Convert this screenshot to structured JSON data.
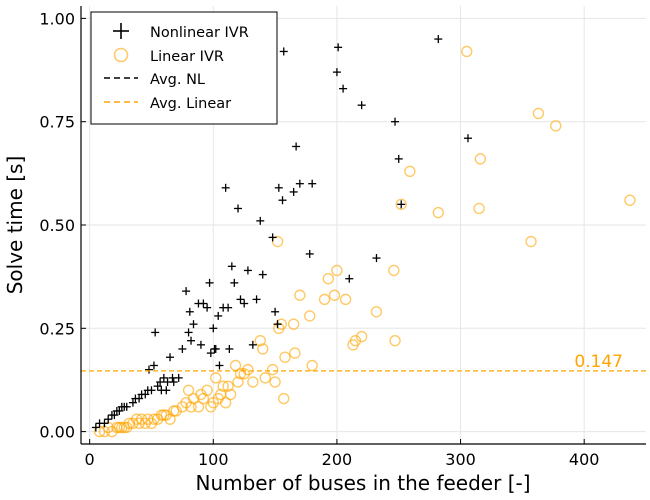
{
  "chart_data": {
    "type": "scatter",
    "xlabel": "Number of buses in the feeder [-]",
    "ylabel": "Solve time [s]",
    "xlim": [
      -7,
      450
    ],
    "ylim": [
      -0.03,
      1.03
    ],
    "xticks": [
      0,
      100,
      200,
      300,
      400
    ],
    "yticks": [
      0.0,
      0.25,
      0.5,
      0.75,
      1.0
    ],
    "xtick_labels": [
      "0",
      "100",
      "200",
      "300",
      "400"
    ],
    "ytick_labels": [
      "0.00",
      "0.25",
      "0.50",
      "0.75",
      "1.00"
    ],
    "grid": true,
    "legend_position": "top-left",
    "colors": {
      "nonlinear": "#000000",
      "linear": "#FFA500"
    },
    "series": [
      {
        "name": "Nonlinear IVR",
        "marker": "plus",
        "points": [
          [
            5,
            0.01
          ],
          [
            8,
            0.02
          ],
          [
            12,
            0.02
          ],
          [
            15,
            0.03
          ],
          [
            18,
            0.04
          ],
          [
            20,
            0.04
          ],
          [
            22,
            0.05
          ],
          [
            24,
            0.05
          ],
          [
            26,
            0.06
          ],
          [
            28,
            0.06
          ],
          [
            30,
            0.06
          ],
          [
            35,
            0.07
          ],
          [
            37,
            0.08
          ],
          [
            40,
            0.08
          ],
          [
            42,
            0.09
          ],
          [
            45,
            0.09
          ],
          [
            47,
            0.1
          ],
          [
            48,
            0.15
          ],
          [
            50,
            0.1
          ],
          [
            52,
            0.16
          ],
          [
            53,
            0.24
          ],
          [
            55,
            0.11
          ],
          [
            57,
            0.12
          ],
          [
            58,
            0.1
          ],
          [
            60,
            0.13
          ],
          [
            62,
            0.1
          ],
          [
            63,
            0.12
          ],
          [
            65,
            0.18
          ],
          [
            67,
            0.13
          ],
          [
            68,
            0.12
          ],
          [
            72,
            0.13
          ],
          [
            75,
            0.2
          ],
          [
            78,
            0.34
          ],
          [
            80,
            0.24
          ],
          [
            81,
            0.29
          ],
          [
            82,
            0.22
          ],
          [
            84,
            0.26
          ],
          [
            88,
            0.31
          ],
          [
            90,
            0.21
          ],
          [
            92,
            0.31
          ],
          [
            95,
            0.3
          ],
          [
            97,
            0.36
          ],
          [
            98,
            0.19
          ],
          [
            100,
            0.25
          ],
          [
            101,
            0.2
          ],
          [
            102,
            0.2
          ],
          [
            104,
            0.28
          ],
          [
            105,
            0.16
          ],
          [
            108,
            0.3
          ],
          [
            110,
            0.59
          ],
          [
            112,
            0.3
          ],
          [
            113,
            0.2
          ],
          [
            115,
            0.4
          ],
          [
            117,
            0.36
          ],
          [
            120,
            0.54
          ],
          [
            122,
            0.32
          ],
          [
            125,
            0.31
          ],
          [
            128,
            0.39
          ],
          [
            132,
            0.21
          ],
          [
            135,
            0.32
          ],
          [
            138,
            0.51
          ],
          [
            140,
            0.38
          ],
          [
            148,
            0.47
          ],
          [
            150,
            0.29
          ],
          [
            152,
            0.26
          ],
          [
            153,
            0.59
          ],
          [
            156,
            0.56
          ],
          [
            157,
            0.92
          ],
          [
            165,
            0.58
          ],
          [
            167,
            0.69
          ],
          [
            170,
            0.6
          ],
          [
            178,
            0.43
          ],
          [
            180,
            0.6
          ],
          [
            200,
            0.87
          ],
          [
            201,
            0.93
          ],
          [
            205,
            0.83
          ],
          [
            210,
            0.37
          ],
          [
            220,
            0.79
          ],
          [
            232,
            0.42
          ],
          [
            247,
            0.75
          ],
          [
            250,
            0.66
          ],
          [
            252,
            0.55
          ],
          [
            282,
            0.95
          ],
          [
            306,
            0.71
          ]
        ]
      },
      {
        "name": "Linear IVR",
        "marker": "circle",
        "points": [
          [
            8,
            0.0
          ],
          [
            12,
            0.0
          ],
          [
            15,
            0.01
          ],
          [
            18,
            0.0
          ],
          [
            22,
            0.01
          ],
          [
            24,
            0.01
          ],
          [
            26,
            0.01
          ],
          [
            28,
            0.01
          ],
          [
            30,
            0.01
          ],
          [
            32,
            0.02
          ],
          [
            35,
            0.02
          ],
          [
            38,
            0.03
          ],
          [
            40,
            0.02
          ],
          [
            42,
            0.03
          ],
          [
            45,
            0.02
          ],
          [
            47,
            0.03
          ],
          [
            50,
            0.02
          ],
          [
            52,
            0.03
          ],
          [
            55,
            0.03
          ],
          [
            58,
            0.04
          ],
          [
            60,
            0.04
          ],
          [
            62,
            0.04
          ],
          [
            65,
            0.03
          ],
          [
            68,
            0.05
          ],
          [
            70,
            0.05
          ],
          [
            75,
            0.06
          ],
          [
            78,
            0.07
          ],
          [
            80,
            0.1
          ],
          [
            82,
            0.06
          ],
          [
            84,
            0.08
          ],
          [
            88,
            0.06
          ],
          [
            90,
            0.09
          ],
          [
            92,
            0.08
          ],
          [
            95,
            0.1
          ],
          [
            98,
            0.06
          ],
          [
            100,
            0.07
          ],
          [
            102,
            0.13
          ],
          [
            104,
            0.08
          ],
          [
            106,
            0.09
          ],
          [
            108,
            0.11
          ],
          [
            110,
            0.07
          ],
          [
            112,
            0.11
          ],
          [
            114,
            0.09
          ],
          [
            118,
            0.16
          ],
          [
            120,
            0.12
          ],
          [
            122,
            0.14
          ],
          [
            125,
            0.14
          ],
          [
            128,
            0.15
          ],
          [
            132,
            0.12
          ],
          [
            138,
            0.22
          ],
          [
            140,
            0.2
          ],
          [
            142,
            0.13
          ],
          [
            148,
            0.15
          ],
          [
            150,
            0.12
          ],
          [
            152,
            0.46
          ],
          [
            153,
            0.25
          ],
          [
            155,
            0.26
          ],
          [
            157,
            0.08
          ],
          [
            158,
            0.18
          ],
          [
            165,
            0.26
          ],
          [
            166,
            0.19
          ],
          [
            170,
            0.33
          ],
          [
            178,
            0.28
          ],
          [
            180,
            0.16
          ],
          [
            190,
            0.32
          ],
          [
            193,
            0.37
          ],
          [
            198,
            0.33
          ],
          [
            200,
            0.39
          ],
          [
            207,
            0.32
          ],
          [
            213,
            0.21
          ],
          [
            215,
            0.22
          ],
          [
            220,
            0.23
          ],
          [
            232,
            0.29
          ],
          [
            246,
            0.39
          ],
          [
            247,
            0.22
          ],
          [
            252,
            0.55
          ],
          [
            259,
            0.63
          ],
          [
            282,
            0.53
          ],
          [
            305,
            0.92
          ],
          [
            315,
            0.54
          ],
          [
            316,
            0.66
          ],
          [
            357,
            0.46
          ],
          [
            363,
            0.77
          ],
          [
            377,
            0.74
          ],
          [
            437,
            0.56
          ]
        ]
      },
      {
        "name": "Avg. NL",
        "marker": "dashed-line",
        "value": null
      },
      {
        "name": "Avg. Linear",
        "marker": "dashed-line",
        "value": 0.147
      }
    ],
    "annotations": [
      {
        "text": "0.147",
        "x": 410,
        "y": 0.147
      }
    ]
  }
}
